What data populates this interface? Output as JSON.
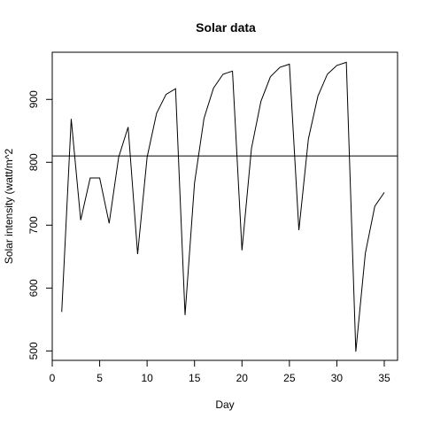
{
  "chart_data": {
    "type": "line",
    "title": "Solar data",
    "xlabel": "Day",
    "ylabel": "Solar intensity (watt/m^2",
    "xlim": [
      0,
      36.4
    ],
    "ylim": [
      485,
      975
    ],
    "xticks": [
      0,
      5,
      10,
      15,
      20,
      25,
      30,
      35
    ],
    "yticks": [
      500,
      600,
      700,
      800,
      900
    ],
    "grid": false,
    "legend": "none",
    "hline": 810,
    "line_color": "#000000",
    "series": [
      {
        "x": [
          1,
          2,
          3,
          4,
          5,
          6,
          7,
          8,
          9,
          10,
          11,
          12,
          13,
          14,
          15,
          16,
          17,
          18,
          19,
          20,
          21,
          22,
          23,
          24,
          25,
          26,
          27,
          28,
          29,
          30,
          31,
          32,
          33,
          34,
          35
        ],
        "values": [
          562,
          869,
          708,
          775,
          775,
          703,
          808,
          856,
          654,
          808,
          878,
          908,
          917,
          557,
          767,
          870,
          918,
          940,
          945,
          660,
          822,
          897,
          936,
          951,
          956,
          692,
          837,
          905,
          940,
          954,
          959,
          499,
          655,
          730,
          752
        ]
      }
    ]
  }
}
